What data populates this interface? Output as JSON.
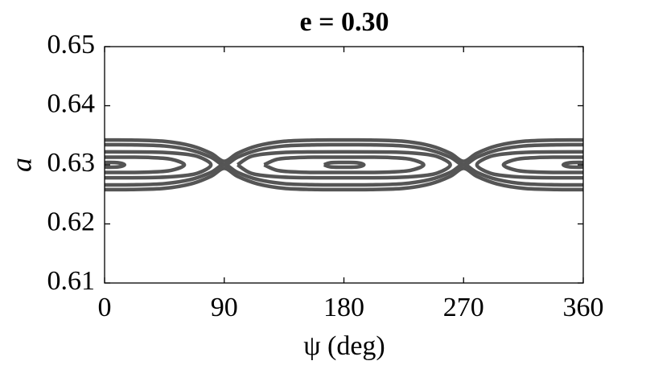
{
  "chart_data": {
    "type": "contour",
    "title": "e = 0.30",
    "xlabel": "ψ (deg)",
    "ylabel": "a",
    "xlim": [
      0,
      360
    ],
    "ylim": [
      0.61,
      0.65
    ],
    "xticks": [
      0,
      90,
      180,
      270,
      360
    ],
    "yticks": [
      0.61,
      0.62,
      0.63,
      0.64,
      0.65
    ],
    "grid": false,
    "color": "#555555",
    "series": [
      {
        "x": [
          0,
          20,
          45,
          65,
          80,
          90,
          100,
          115,
          135,
          160,
          180,
          200,
          225,
          245,
          260,
          270,
          280,
          295,
          315,
          340,
          360
        ],
        "y": [
          0.6334,
          0.63339,
          0.63319,
          0.63248,
          0.63128,
          0.63,
          0.63128,
          0.63248,
          0.63319,
          0.63339,
          0.6334,
          0.63339,
          0.63319,
          0.63248,
          0.63128,
          0.63,
          0.63128,
          0.63248,
          0.63319,
          0.63339,
          0.6334
        ]
      },
      {
        "x": [
          0,
          20,
          45,
          65,
          80,
          90,
          100,
          115,
          135,
          160,
          180,
          200,
          225,
          245,
          260,
          270,
          280,
          295,
          315,
          340,
          360
        ],
        "y": [
          0.6266,
          0.62661,
          0.62681,
          0.62752,
          0.62872,
          0.63,
          0.62872,
          0.62752,
          0.62681,
          0.62661,
          0.6266,
          0.62661,
          0.62681,
          0.62752,
          0.62872,
          0.63,
          0.62872,
          0.62752,
          0.62681,
          0.62661,
          0.6266
        ]
      },
      {
        "x": [
          0,
          20,
          45,
          65,
          80,
          90,
          100,
          115,
          135,
          160,
          180,
          200,
          225,
          245,
          260,
          270,
          280,
          295,
          315,
          340,
          360
        ],
        "y": [
          0.6342,
          0.63419,
          0.63398,
          0.63322,
          0.63195,
          0.6306,
          0.63195,
          0.63322,
          0.63398,
          0.63419,
          0.6342,
          0.63419,
          0.63398,
          0.63322,
          0.63195,
          0.6306,
          0.63195,
          0.63322,
          0.63398,
          0.63419,
          0.6342
        ]
      },
      {
        "x": [
          0,
          20,
          45,
          65,
          80,
          90,
          100,
          115,
          135,
          160,
          180,
          200,
          225,
          245,
          260,
          270,
          280,
          295,
          315,
          340,
          360
        ],
        "y": [
          0.6258,
          0.62581,
          0.62602,
          0.62678,
          0.62805,
          0.6294,
          0.62805,
          0.62678,
          0.62602,
          0.62581,
          0.6258,
          0.62581,
          0.62602,
          0.62678,
          0.62805,
          0.6294,
          0.62805,
          0.62678,
          0.62602,
          0.62581,
          0.6258
        ]
      },
      {
        "x": [
          100,
          110,
          125,
          145,
          180,
          215,
          235,
          250,
          260,
          250,
          235,
          215,
          180,
          145,
          125,
          110,
          100
        ],
        "y": [
          0.63,
          0.63141,
          0.63194,
          0.63216,
          0.6322,
          0.63216,
          0.63194,
          0.63141,
          0.63,
          0.62859,
          0.62806,
          0.62784,
          0.6278,
          0.62784,
          0.62806,
          0.62859,
          0.63
        ]
      },
      {
        "x": [
          0,
          35,
          55,
          70,
          80,
          70,
          55,
          35,
          0
        ],
        "y": [
          0.6322,
          0.63216,
          0.63194,
          0.63141,
          0.63,
          0.62859,
          0.62806,
          0.62784,
          0.6278
        ]
      },
      {
        "x": [
          360,
          325,
          305,
          290,
          280,
          290,
          305,
          325,
          360
        ],
        "y": [
          0.6322,
          0.63216,
          0.63194,
          0.63141,
          0.63,
          0.62859,
          0.62806,
          0.62784,
          0.6278
        ]
      },
      {
        "x": [
          120,
          130,
          145,
          160,
          180,
          200,
          215,
          230,
          240,
          230,
          215,
          200,
          180,
          160,
          145,
          130,
          120
        ],
        "y": [
          0.63,
          0.63094,
          0.63122,
          0.63129,
          0.6313,
          0.63129,
          0.63122,
          0.63094,
          0.63,
          0.62906,
          0.62878,
          0.62871,
          0.6287,
          0.62871,
          0.62878,
          0.62906,
          0.63
        ]
      },
      {
        "x": [
          0,
          20,
          35,
          50,
          60,
          50,
          35,
          20,
          0
        ],
        "y": [
          0.6313,
          0.63129,
          0.63122,
          0.63094,
          0.63,
          0.62906,
          0.62878,
          0.62871,
          0.6287
        ]
      },
      {
        "x": [
          360,
          340,
          325,
          310,
          300,
          310,
          325,
          340,
          360
        ],
        "y": [
          0.6313,
          0.63129,
          0.63122,
          0.63094,
          0.63,
          0.62906,
          0.62878,
          0.62871,
          0.6287
        ]
      },
      {
        "x": [
          165,
          170,
          180,
          190,
          195,
          190,
          180,
          170,
          165
        ],
        "y": [
          0.63,
          0.63036,
          0.6304,
          0.63036,
          0.63,
          0.62964,
          0.6296,
          0.62964,
          0.63
        ]
      },
      {
        "x": [
          0,
          10,
          15,
          10,
          0
        ],
        "y": [
          0.6304,
          0.63036,
          0.63,
          0.62964,
          0.6296
        ]
      },
      {
        "x": [
          360,
          350,
          345,
          350,
          360
        ],
        "y": [
          0.6304,
          0.63036,
          0.63,
          0.62964,
          0.6296
        ]
      }
    ]
  }
}
